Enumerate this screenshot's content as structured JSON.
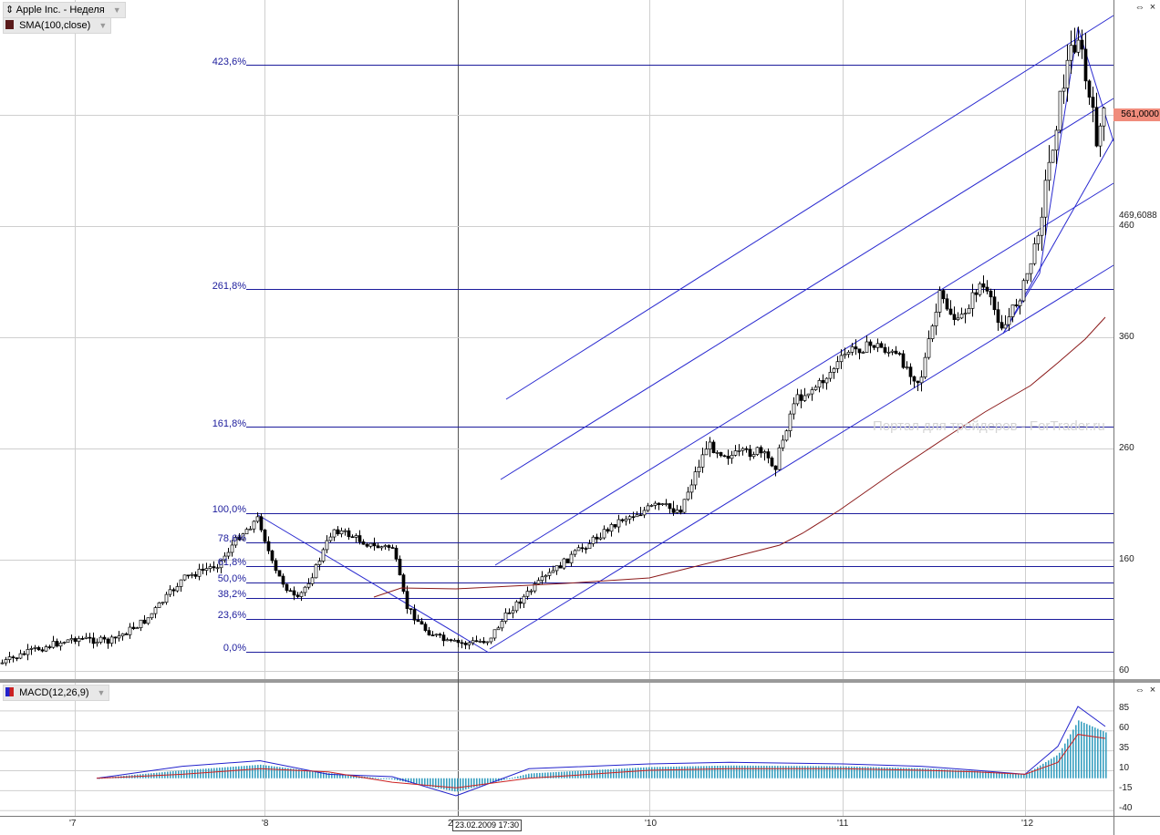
{
  "main_panel": {
    "title": "Apple Inc. - Неделя",
    "indicator": "SMA(100,close)",
    "indicator_color": "#5a1a1a",
    "current_price": "561,0000",
    "marker_price": "469,6088",
    "watermark": "Портал для трейдеров - ForTrader.ru"
  },
  "macd_panel": {
    "title": "MACD(12,26,9)"
  },
  "window_buttons": {
    "close": "×",
    "restore": "⇔"
  },
  "cursor_time": "23.02.2009 17:30",
  "price_axis": [
    "460",
    "360",
    "260",
    "160",
    "60"
  ],
  "macd_axis": [
    "85",
    "60",
    "35",
    "10",
    "-15",
    "-40"
  ],
  "time_axis": [
    "'7",
    "'8",
    "2",
    "'10",
    "'11",
    "'12"
  ],
  "fibonacci_levels": [
    "423,6%",
    "261,8%",
    "161,8%",
    "100,0%",
    "78,6%",
    "61,8%",
    "50,0%",
    "38,2%",
    "23,6%",
    "0,0%"
  ],
  "colors": {
    "fib_lines": "#1c1c9c",
    "channel_lines": "#2a2ad0",
    "sma_line": "#8b1a1a",
    "macd_line": "#2222cc",
    "signal_line": "#cc2222",
    "histogram": "#3aa0c0",
    "grid": "#cfcfcf",
    "price_marker": "#f08c7c"
  },
  "chart_data": [
    {
      "type": "candlestick",
      "title": "Apple Inc. - Неделя",
      "frequency": "weekly",
      "x": [
        "2007-01",
        "2007-07",
        "2008-01",
        "2008-06",
        "2008-10",
        "2009-03",
        "2009-09",
        "2010-01",
        "2010-05",
        "2010-10",
        "2011-01",
        "2011-06",
        "2011-10",
        "2012-01",
        "2012-03",
        "2012-04",
        "2012-05"
      ],
      "close": [
        82,
        130,
        185,
        180,
        100,
        88,
        180,
        205,
        265,
        310,
        345,
        340,
        400,
        430,
        590,
        620,
        561
      ],
      "ylim": [
        60,
        660
      ],
      "series": [
        {
          "name": "SMA(100,close)",
          "values": [
            null,
            null,
            null,
            130,
            128,
            135,
            140,
            150,
            180,
            220,
            260,
            300,
            330,
            340,
            380,
            400,
            410
          ]
        }
      ],
      "fibonacci": {
        "levels": [
          "0,0%",
          "23,6%",
          "38,2%",
          "50,0%",
          "61,8%",
          "78,6%",
          "100,0%",
          "161,8%",
          "261,8%",
          "423,6%"
        ],
        "prices": [
          78,
          102,
          118,
          131,
          143,
          160,
          183,
          250,
          358,
          560
        ]
      },
      "price_axis_ticks": [
        460,
        360,
        260,
        160,
        60
      ]
    },
    {
      "type": "macd",
      "title": "MACD(12,26,9)",
      "x": [
        "2007-03",
        "2007-09",
        "2008-01",
        "2008-05",
        "2008-09",
        "2009-01",
        "2009-06",
        "2010-01",
        "2010-06",
        "2011-01",
        "2011-06",
        "2011-10",
        "2012-01",
        "2012-03",
        "2012-04",
        "2012-05"
      ],
      "series": [
        {
          "name": "MACD",
          "values": [
            0,
            15,
            22,
            5,
            2,
            -22,
            12,
            18,
            20,
            18,
            15,
            10,
            5,
            40,
            90,
            65
          ]
        },
        {
          "name": "Signal",
          "values": [
            0,
            5,
            12,
            8,
            -5,
            -12,
            0,
            10,
            12,
            12,
            10,
            8,
            5,
            20,
            55,
            50
          ]
        }
      ],
      "ylim": [
        -45,
        95
      ],
      "axis_ticks": [
        85,
        60,
        35,
        10,
        -15,
        -40
      ]
    }
  ]
}
